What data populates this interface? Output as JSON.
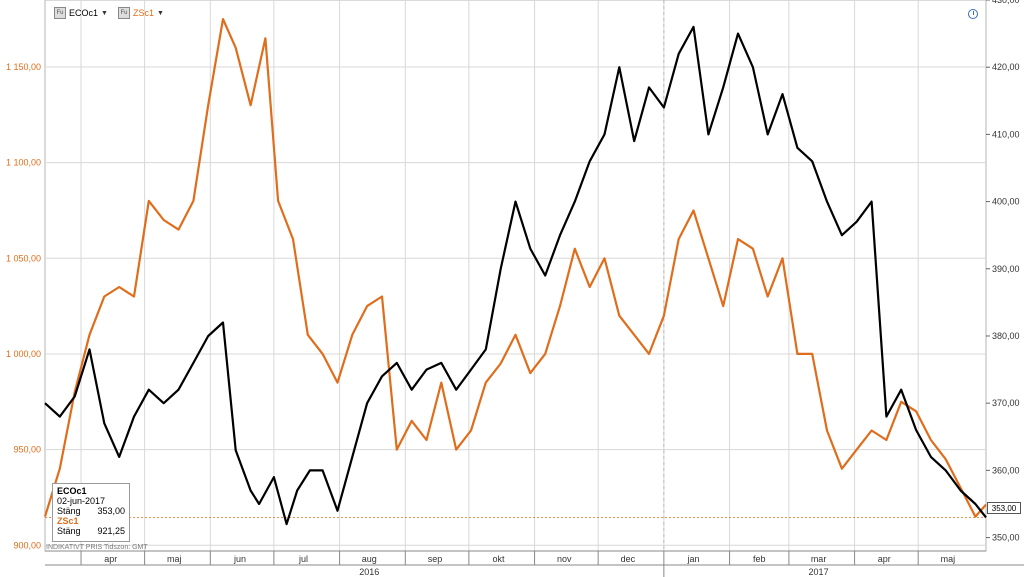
{
  "legend": [
    {
      "icon": "fu-icon",
      "icon_text": "Fu",
      "label": "ECOc1",
      "color": "#000000"
    },
    {
      "icon": "fu-icon",
      "icon_text": "Fu",
      "label": "ZSc1",
      "color": "#e06d1b"
    }
  ],
  "infobox": {
    "ticker1": "ECOc1",
    "date": "02-jun-2017",
    "close_label": "Stäng",
    "close1": "353,00",
    "ticker2": "ZSc1",
    "close2": "921,25"
  },
  "footer_note": "INDIKATIVT PRIS  Tidszon: GMT",
  "price_tag": "353,00",
  "colors": {
    "eco": "#000000",
    "zs": "#e06d1b",
    "grid": "#d8d8d8",
    "axis_left_text": "#e06d1b",
    "ref_line": "#e06d1b"
  },
  "chart_data": {
    "type": "line",
    "x_start": "2016-03-15",
    "x_end": "2017-06-02",
    "month_labels": [
      {
        "label": "apr",
        "date": "2016-04-15"
      },
      {
        "label": "maj",
        "date": "2016-05-15"
      },
      {
        "label": "jun",
        "date": "2016-06-15"
      },
      {
        "label": "jul",
        "date": "2016-07-15"
      },
      {
        "label": "aug",
        "date": "2016-08-15"
      },
      {
        "label": "sep",
        "date": "2016-09-15"
      },
      {
        "label": "okt",
        "date": "2016-10-15"
      },
      {
        "label": "nov",
        "date": "2016-11-15"
      },
      {
        "label": "dec",
        "date": "2016-12-15"
      },
      {
        "label": "jan",
        "date": "2017-01-15"
      },
      {
        "label": "feb",
        "date": "2017-02-15"
      },
      {
        "label": "mar",
        "date": "2017-03-15"
      },
      {
        "label": "apr",
        "date": "2017-04-15"
      },
      {
        "label": "maj",
        "date": "2017-05-15"
      }
    ],
    "year_labels": [
      {
        "label": "2016",
        "date": "2016-08-15"
      },
      {
        "label": "2017",
        "date": "2017-03-15"
      }
    ],
    "left_axis": {
      "range": [
        897,
        1185
      ],
      "ticks": [
        900,
        950,
        1000,
        1050,
        1100,
        1150
      ],
      "tick_labels": [
        "900,00",
        "950,00",
        "1 000,00",
        "1 050,00",
        "1 100,00",
        "1 150,00"
      ]
    },
    "right_axis": {
      "range": [
        348,
        430
      ],
      "ticks": [
        350,
        360,
        370,
        380,
        390,
        400,
        410,
        420,
        430
      ],
      "tick_labels": [
        "350,00",
        "360,00",
        "370,00",
        "380,00",
        "390,00",
        "400,00",
        "410,00",
        "420,00",
        "430,00"
      ]
    },
    "reference_value_right": 353,
    "series": [
      {
        "name": "ECOc1",
        "axis": "right",
        "points": [
          [
            "2016-03-15",
            370
          ],
          [
            "2016-03-22",
            368
          ],
          [
            "2016-03-29",
            371
          ],
          [
            "2016-04-05",
            378
          ],
          [
            "2016-04-12",
            367
          ],
          [
            "2016-04-19",
            362
          ],
          [
            "2016-04-26",
            368
          ],
          [
            "2016-05-03",
            372
          ],
          [
            "2016-05-10",
            370
          ],
          [
            "2016-05-17",
            372
          ],
          [
            "2016-05-24",
            376
          ],
          [
            "2016-05-31",
            380
          ],
          [
            "2016-06-07",
            382
          ],
          [
            "2016-06-13",
            363
          ],
          [
            "2016-06-20",
            357
          ],
          [
            "2016-06-24",
            355
          ],
          [
            "2016-07-01",
            359
          ],
          [
            "2016-07-07",
            352
          ],
          [
            "2016-07-12",
            357
          ],
          [
            "2016-07-18",
            360
          ],
          [
            "2016-07-24",
            360
          ],
          [
            "2016-07-31",
            354
          ],
          [
            "2016-08-07",
            362
          ],
          [
            "2016-08-14",
            370
          ],
          [
            "2016-08-21",
            374
          ],
          [
            "2016-08-28",
            376
          ],
          [
            "2016-09-04",
            372
          ],
          [
            "2016-09-11",
            375
          ],
          [
            "2016-09-18",
            376
          ],
          [
            "2016-09-25",
            372
          ],
          [
            "2016-10-02",
            375
          ],
          [
            "2016-10-09",
            378
          ],
          [
            "2016-10-16",
            390
          ],
          [
            "2016-10-23",
            400
          ],
          [
            "2016-10-30",
            393
          ],
          [
            "2016-11-06",
            389
          ],
          [
            "2016-11-13",
            395
          ],
          [
            "2016-11-20",
            400
          ],
          [
            "2016-11-27",
            406
          ],
          [
            "2016-12-04",
            410
          ],
          [
            "2016-12-11",
            420
          ],
          [
            "2016-12-18",
            409
          ],
          [
            "2016-12-25",
            417
          ],
          [
            "2017-01-01",
            414
          ],
          [
            "2017-01-08",
            422
          ],
          [
            "2017-01-15",
            426
          ],
          [
            "2017-01-22",
            410
          ],
          [
            "2017-01-29",
            417
          ],
          [
            "2017-02-05",
            425
          ],
          [
            "2017-02-12",
            420
          ],
          [
            "2017-02-19",
            410
          ],
          [
            "2017-02-26",
            416
          ],
          [
            "2017-03-05",
            408
          ],
          [
            "2017-03-12",
            406
          ],
          [
            "2017-03-19",
            400
          ],
          [
            "2017-03-26",
            395
          ],
          [
            "2017-04-02",
            397
          ],
          [
            "2017-04-09",
            400
          ],
          [
            "2017-04-16",
            368
          ],
          [
            "2017-04-23",
            372
          ],
          [
            "2017-04-30",
            366
          ],
          [
            "2017-05-07",
            362
          ],
          [
            "2017-05-14",
            360
          ],
          [
            "2017-05-21",
            357
          ],
          [
            "2017-05-28",
            355
          ],
          [
            "2017-06-02",
            353
          ]
        ]
      },
      {
        "name": "ZSc1",
        "axis": "left",
        "points": [
          [
            "2016-03-15",
            915
          ],
          [
            "2016-03-22",
            940
          ],
          [
            "2016-03-29",
            980
          ],
          [
            "2016-04-05",
            1010
          ],
          [
            "2016-04-12",
            1030
          ],
          [
            "2016-04-19",
            1035
          ],
          [
            "2016-04-26",
            1030
          ],
          [
            "2016-05-03",
            1080
          ],
          [
            "2016-05-10",
            1070
          ],
          [
            "2016-05-17",
            1065
          ],
          [
            "2016-05-24",
            1080
          ],
          [
            "2016-05-31",
            1130
          ],
          [
            "2016-06-07",
            1175
          ],
          [
            "2016-06-13",
            1160
          ],
          [
            "2016-06-20",
            1130
          ],
          [
            "2016-06-27",
            1165
          ],
          [
            "2016-07-03",
            1080
          ],
          [
            "2016-07-10",
            1060
          ],
          [
            "2016-07-17",
            1010
          ],
          [
            "2016-07-24",
            1000
          ],
          [
            "2016-07-31",
            985
          ],
          [
            "2016-08-07",
            1010
          ],
          [
            "2016-08-14",
            1025
          ],
          [
            "2016-08-21",
            1030
          ],
          [
            "2016-08-28",
            950
          ],
          [
            "2016-09-04",
            965
          ],
          [
            "2016-09-11",
            955
          ],
          [
            "2016-09-18",
            985
          ],
          [
            "2016-09-25",
            950
          ],
          [
            "2016-10-02",
            960
          ],
          [
            "2016-10-09",
            985
          ],
          [
            "2016-10-16",
            995
          ],
          [
            "2016-10-23",
            1010
          ],
          [
            "2016-10-30",
            990
          ],
          [
            "2016-11-06",
            1000
          ],
          [
            "2016-11-13",
            1025
          ],
          [
            "2016-11-20",
            1055
          ],
          [
            "2016-11-27",
            1035
          ],
          [
            "2016-12-04",
            1050
          ],
          [
            "2016-12-11",
            1020
          ],
          [
            "2016-12-18",
            1010
          ],
          [
            "2016-12-25",
            1000
          ],
          [
            "2017-01-01",
            1020
          ],
          [
            "2017-01-08",
            1060
          ],
          [
            "2017-01-15",
            1075
          ],
          [
            "2017-01-22",
            1050
          ],
          [
            "2017-01-29",
            1025
          ],
          [
            "2017-02-05",
            1060
          ],
          [
            "2017-02-12",
            1055
          ],
          [
            "2017-02-19",
            1030
          ],
          [
            "2017-02-26",
            1050
          ],
          [
            "2017-03-05",
            1000
          ],
          [
            "2017-03-12",
            1000
          ],
          [
            "2017-03-19",
            960
          ],
          [
            "2017-03-26",
            940
          ],
          [
            "2017-04-02",
            950
          ],
          [
            "2017-04-09",
            960
          ],
          [
            "2017-04-16",
            955
          ],
          [
            "2017-04-23",
            975
          ],
          [
            "2017-04-30",
            970
          ],
          [
            "2017-05-07",
            955
          ],
          [
            "2017-05-14",
            945
          ],
          [
            "2017-05-21",
            930
          ],
          [
            "2017-05-28",
            915
          ],
          [
            "2017-06-02",
            921.25
          ]
        ]
      }
    ]
  }
}
